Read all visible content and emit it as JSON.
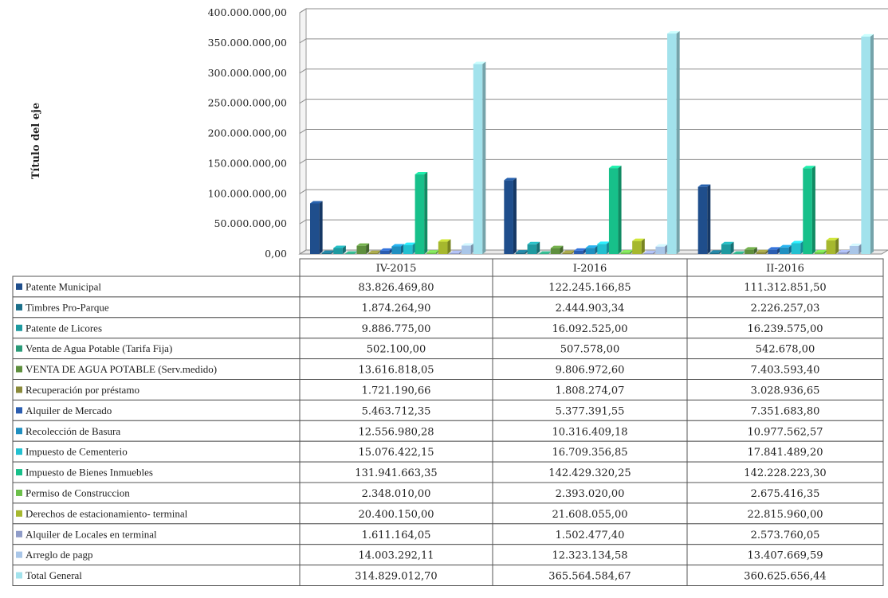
{
  "chart_data": {
    "type": "bar",
    "ylabel": "Título del eje",
    "ylim": [
      0,
      400000000
    ],
    "yticks": [
      "0,00",
      "50.000.000,00",
      "100.000.000,00",
      "150.000.000,00",
      "200.000.000,00",
      "250.000.000,00",
      "300.000.000,00",
      "350.000.000,00",
      "400.000.000,00"
    ],
    "grid": true,
    "legend": "data-table-left",
    "categories": [
      "IV-2015",
      "I-2016",
      "II-2016"
    ],
    "series": [
      {
        "name": "Patente Municipal",
        "color": "#1f4e8c",
        "values": [
          83826469.8,
          122245166.85,
          111312851.5
        ],
        "labels": [
          "83.826.469,80",
          "122.245.166,85",
          "111.312.851,50"
        ]
      },
      {
        "name": "Timbres Pro-Parque",
        "color": "#1b6f8a",
        "values": [
          1874264.9,
          2444903.34,
          2226257.03
        ],
        "labels": [
          "1.874.264,90",
          "2.444.903,34",
          "2.226.257,03"
        ]
      },
      {
        "name": "Patente de Licores",
        "color": "#1e9aa0",
        "values": [
          9886775.0,
          16092525.0,
          16239575.0
        ],
        "labels": [
          "9.886.775,00",
          "16.092.525,00",
          "16.239.575,00"
        ]
      },
      {
        "name": "Venta de Agua Potable (Tarifa Fija)",
        "color": "#2a9a78",
        "values": [
          502100.0,
          507578.0,
          542678.0
        ],
        "labels": [
          "502.100,00",
          "507.578,00",
          "542.678,00"
        ]
      },
      {
        "name": "VENTA DE AGUA POTABLE (Serv.medido)",
        "color": "#5e8f3e",
        "values": [
          13616818.05,
          9806972.6,
          7403593.4
        ],
        "labels": [
          "13.616.818,05",
          "9.806.972,60",
          "7.403.593,40"
        ]
      },
      {
        "name": "Recuperación por préstamo",
        "color": "#8a8a3a",
        "values": [
          1721190.66,
          1808274.07,
          3028936.65
        ],
        "labels": [
          "1.721.190,66",
          "1.808.274,07",
          "3.028.936,65"
        ]
      },
      {
        "name": "Alquiler de Mercado",
        "color": "#2a5db0",
        "values": [
          5463712.35,
          5377391.55,
          7351683.8
        ],
        "labels": [
          "5.463.712,35",
          "5.377.391,55",
          "7.351.683,80"
        ]
      },
      {
        "name": "Recolección de Basura",
        "color": "#1f8fc0",
        "values": [
          12556980.28,
          10316409.18,
          10977562.57
        ],
        "labels": [
          "12.556.980,28",
          "10.316.409,18",
          "10.977.562,57"
        ]
      },
      {
        "name": "Impuesto de Cementerio",
        "color": "#22c0d0",
        "values": [
          15076422.15,
          16709356.85,
          17841489.2
        ],
        "labels": [
          "15.076.422,15",
          "16.709.356,85",
          "17.841.489,20"
        ]
      },
      {
        "name": "Impuesto de Bienes Inmuebles",
        "color": "#17c08a",
        "values": [
          131941663.35,
          142429320.25,
          142228223.3
        ],
        "labels": [
          "131.941.663,35",
          "142.429.320,25",
          "142.228.223,30"
        ]
      },
      {
        "name": "Permiso de Construccion",
        "color": "#6cc04a",
        "values": [
          2348010.0,
          2393020.0,
          2675416.35
        ],
        "labels": [
          "2.348.010,00",
          "2.393.020,00",
          "2.675.416,35"
        ]
      },
      {
        "name": "Derechos de estacionamiento- terminal",
        "color": "#a6b82e",
        "values": [
          20400150.0,
          21608055.0,
          22815960.0
        ],
        "labels": [
          "20.400.150,00",
          "21.608.055,00",
          "22.815.960,00"
        ]
      },
      {
        "name": "Alquiler de Locales en terminal",
        "color": "#8f9cc8",
        "values": [
          1611164.05,
          1502477.4,
          2573760.05
        ],
        "labels": [
          "1.611.164,05",
          "1.502.477,40",
          "2.573.760,05"
        ]
      },
      {
        "name": "Arreglo de pagp",
        "color": "#a9c6e8",
        "values": [
          14003292.11,
          12323134.58,
          13407669.59
        ],
        "labels": [
          "14.003.292,11",
          "12.323.134,58",
          "13.407.669,59"
        ]
      },
      {
        "name": "Total General",
        "color": "#a2e2ec",
        "values": [
          314829012.7,
          365564584.67,
          360625656.44
        ],
        "labels": [
          "314.829.012,70",
          "365.564.584,67",
          "360.625.656,44"
        ]
      }
    ]
  }
}
